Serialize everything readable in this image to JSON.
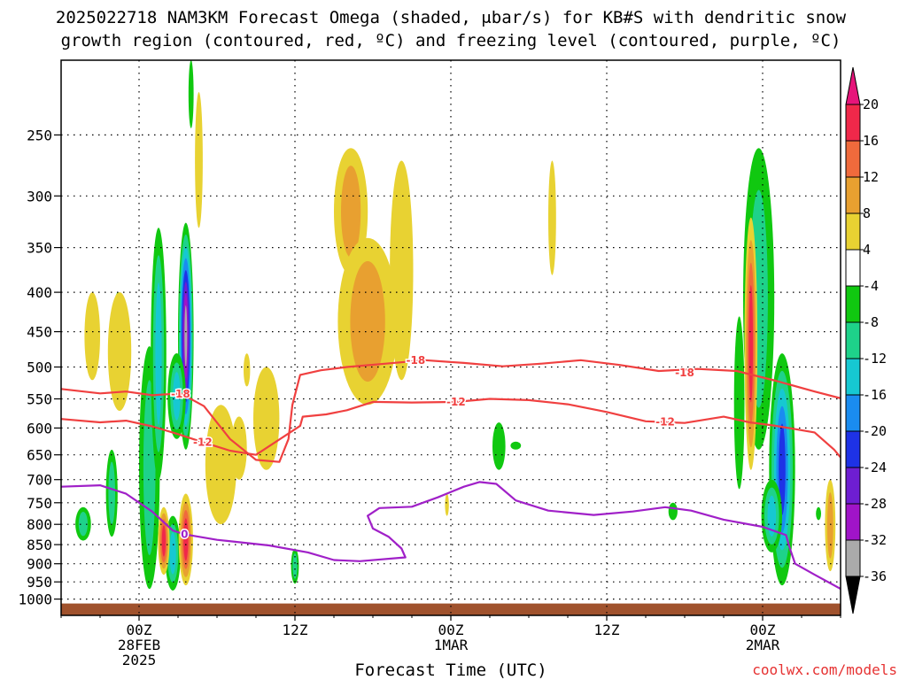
{
  "title_line1": "2025022718 NAM3KM Forecast Omega (shaded, μbar/s) for KB#S with dendritic snow",
  "title_line2": "growth region (contoured, red, ºC) and freezing level (contoured, purple, ºC)",
  "credit": "coolwx.com/models",
  "chart_data": {
    "type": "heatmap",
    "title": "2025022718 NAM3KM Forecast Omega (shaded, μbar/s) for KB#S with dendritic snow growth region (contoured, red, ºC) and freezing level (contoured, purple, ºC)",
    "xlabel": "Forecast Time (UTC)",
    "ylabel": "",
    "x_units": "hours after 2025-02-27 18Z",
    "xlim": [
      0,
      60
    ],
    "y_scale": "log",
    "y_units": "hPa",
    "ylim": [
      1050,
      200
    ],
    "y_ticks": [
      250,
      300,
      350,
      400,
      450,
      500,
      550,
      600,
      650,
      700,
      750,
      800,
      850,
      900,
      950,
      1000
    ],
    "x_ticks": [
      {
        "hour": 6,
        "lines": [
          "00Z",
          "28FEB",
          "2025"
        ]
      },
      {
        "hour": 18,
        "lines": [
          "12Z"
        ]
      },
      {
        "hour": 30,
        "lines": [
          "00Z",
          "1MAR"
        ]
      },
      {
        "hour": 42,
        "lines": [
          "12Z"
        ]
      },
      {
        "hour": 54,
        "lines": [
          "00Z",
          "2MAR"
        ]
      }
    ],
    "grid": true,
    "colorbar": {
      "ticks": [
        20,
        16,
        12,
        8,
        4,
        -4,
        -8,
        -12,
        -16,
        -20,
        -24,
        -28,
        -32,
        -36
      ],
      "bins": [
        {
          "lo": 16,
          "hi": 20,
          "color": "#f0284a"
        },
        {
          "lo": 12,
          "hi": 16,
          "color": "#f06a3c"
        },
        {
          "lo": 8,
          "hi": 12,
          "color": "#e8a030"
        },
        {
          "lo": 4,
          "hi": 8,
          "color": "#e8d232"
        },
        {
          "lo": -4,
          "hi": 4,
          "color": "#ffffff"
        },
        {
          "lo": -8,
          "hi": -4,
          "color": "#10c810"
        },
        {
          "lo": -12,
          "hi": -8,
          "color": "#1ed28a"
        },
        {
          "lo": -16,
          "hi": -12,
          "color": "#16c8d2"
        },
        {
          "lo": -20,
          "hi": -16,
          "color": "#1a8cf0"
        },
        {
          "lo": -24,
          "hi": -20,
          "color": "#1e32e6"
        },
        {
          "lo": -28,
          "hi": -24,
          "color": "#6e1ed2"
        },
        {
          "lo": -32,
          "hi": -28,
          "color": "#a014c8"
        },
        {
          "lo": -36,
          "hi": -32,
          "color": "#aaaaaa"
        }
      ],
      "top_arrow_color": "#e6147a",
      "bottom_arrow_color": "#000000"
    },
    "terrain_color": "#a0522d",
    "omega_regions": [
      {
        "hour": 1.7,
        "p_top": 760,
        "p_bottom": 840,
        "half_width": 0.6,
        "levels": [
          -8,
          -12
        ]
      },
      {
        "hour": 3.9,
        "p_top": 640,
        "p_bottom": 830,
        "half_width": 0.45,
        "levels": [
          -8,
          -12
        ]
      },
      {
        "hour": 6.8,
        "p_top": 470,
        "p_bottom": 970,
        "half_width": 0.8,
        "levels": [
          -8,
          -12
        ]
      },
      {
        "hour": 7.5,
        "p_top": 330,
        "p_bottom": 700,
        "half_width": 0.6,
        "levels": [
          -8,
          -12,
          -16
        ]
      },
      {
        "hour": 9.6,
        "p_top": 325,
        "p_bottom": 640,
        "half_width": 0.6,
        "levels": [
          -8,
          -12,
          -16,
          -20,
          -24,
          -28,
          -32,
          -36
        ]
      },
      {
        "hour": 8.9,
        "p_top": 480,
        "p_bottom": 620,
        "half_width": 0.7,
        "levels": [
          -8,
          -12,
          -16
        ]
      },
      {
        "hour": 8.6,
        "p_top": 780,
        "p_bottom": 975,
        "half_width": 0.6,
        "levels": [
          -8,
          -12,
          -16
        ]
      },
      {
        "hour": 4.4,
        "p_top": 400,
        "p_bottom": 520,
        "half_width": 0.5,
        "levels": [
          -8,
          -12
        ]
      },
      {
        "hour": 10.0,
        "p_top": 200,
        "p_bottom": 245,
        "half_width": 0.2,
        "levels": [
          -8
        ]
      },
      {
        "hour": 18.0,
        "p_top": 860,
        "p_bottom": 955,
        "half_width": 0.3,
        "levels": [
          -8,
          -12
        ]
      },
      {
        "hour": 33.7,
        "p_top": 590,
        "p_bottom": 680,
        "half_width": 0.5,
        "levels": [
          -8
        ]
      },
      {
        "hour": 35.0,
        "p_top": 625,
        "p_bottom": 640,
        "half_width": 0.4,
        "levels": [
          -8
        ]
      },
      {
        "hour": 52.2,
        "p_top": 430,
        "p_bottom": 720,
        "half_width": 0.4,
        "levels": [
          -8
        ]
      },
      {
        "hour": 53.7,
        "p_top": 260,
        "p_bottom": 640,
        "half_width": 1.2,
        "levels": [
          -8,
          -12
        ]
      },
      {
        "hour": 55.5,
        "p_top": 480,
        "p_bottom": 960,
        "half_width": 1.0,
        "levels": [
          -8,
          -12,
          -16,
          -20,
          -24
        ]
      },
      {
        "hour": 54.7,
        "p_top": 700,
        "p_bottom": 870,
        "half_width": 0.8,
        "levels": [
          -8,
          -12,
          -16
        ]
      },
      {
        "hour": 47.1,
        "p_top": 750,
        "p_bottom": 790,
        "half_width": 0.35,
        "levels": [
          -8
        ]
      },
      {
        "hour": 58.3,
        "p_top": 760,
        "p_bottom": 790,
        "half_width": 0.2,
        "levels": [
          -8
        ]
      },
      {
        "hour": 4.5,
        "p_top": 400,
        "p_bottom": 570,
        "half_width": 0.9,
        "levels": [
          4
        ]
      },
      {
        "hour": 2.4,
        "p_top": 400,
        "p_bottom": 520,
        "half_width": 0.6,
        "levels": [
          4
        ]
      },
      {
        "hour": 10.6,
        "p_top": 220,
        "p_bottom": 330,
        "half_width": 0.3,
        "levels": [
          4
        ]
      },
      {
        "hour": 12.3,
        "p_top": 560,
        "p_bottom": 800,
        "half_width": 1.2,
        "levels": [
          4
        ]
      },
      {
        "hour": 13.7,
        "p_top": 580,
        "p_bottom": 700,
        "half_width": 0.6,
        "levels": [
          4
        ]
      },
      {
        "hour": 15.8,
        "p_top": 500,
        "p_bottom": 680,
        "half_width": 1.0,
        "levels": [
          4
        ]
      },
      {
        "hour": 22.3,
        "p_top": 260,
        "p_bottom": 380,
        "half_width": 1.3,
        "levels": [
          4,
          8
        ]
      },
      {
        "hour": 23.6,
        "p_top": 340,
        "p_bottom": 560,
        "half_width": 2.3,
        "levels": [
          4,
          8
        ]
      },
      {
        "hour": 26.2,
        "p_top": 270,
        "p_bottom": 520,
        "half_width": 0.9,
        "levels": [
          4
        ]
      },
      {
        "hour": 37.8,
        "p_top": 270,
        "p_bottom": 380,
        "half_width": 0.3,
        "levels": [
          4
        ]
      },
      {
        "hour": 59.2,
        "p_top": 700,
        "p_bottom": 920,
        "half_width": 0.4,
        "levels": [
          4,
          8
        ]
      },
      {
        "hour": 53.1,
        "p_top": 320,
        "p_bottom": 680,
        "half_width": 0.5,
        "levels": [
          4,
          8,
          12,
          16
        ]
      },
      {
        "hour": 9.6,
        "p_top": 730,
        "p_bottom": 960,
        "half_width": 0.55,
        "levels": [
          4,
          8,
          12,
          16
        ]
      },
      {
        "hour": 7.9,
        "p_top": 760,
        "p_bottom": 930,
        "half_width": 0.45,
        "levels": [
          4,
          8,
          12,
          16
        ]
      },
      {
        "hour": 14.3,
        "p_top": 480,
        "p_bottom": 530,
        "half_width": 0.25,
        "levels": [
          4
        ]
      },
      {
        "hour": 29.7,
        "p_top": 730,
        "p_bottom": 780,
        "half_width": 0.15,
        "levels": [
          4
        ]
      }
    ],
    "contours": [
      {
        "level": "-18",
        "color": "#f04040",
        "label_points": [
          [
            9.2,
            542
          ],
          [
            27.3,
            490
          ],
          [
            48.0,
            509
          ]
        ],
        "points": [
          [
            0,
            534
          ],
          [
            3,
            541
          ],
          [
            5,
            538
          ],
          [
            7,
            544
          ],
          [
            9.2,
            541
          ],
          [
            11,
            562
          ],
          [
            13,
            620
          ],
          [
            15,
            660
          ],
          [
            16.8,
            664
          ],
          [
            17.5,
            620
          ],
          [
            17.8,
            560
          ],
          [
            18.4,
            512
          ],
          [
            20,
            505
          ],
          [
            22,
            500
          ],
          [
            25,
            495
          ],
          [
            28,
            490
          ],
          [
            31,
            494
          ],
          [
            34,
            499
          ],
          [
            37,
            495
          ],
          [
            40,
            490
          ],
          [
            43,
            497
          ],
          [
            46,
            506
          ],
          [
            49,
            503
          ],
          [
            52,
            506
          ],
          [
            55,
            521
          ],
          [
            58,
            538
          ],
          [
            60,
            549
          ]
        ]
      },
      {
        "level": "-12",
        "color": "#f04040",
        "label_points": [
          [
            10.9,
            626
          ],
          [
            30.4,
            555
          ],
          [
            46.5,
            589
          ]
        ],
        "points": [
          [
            0,
            584
          ],
          [
            3,
            590
          ],
          [
            5,
            587
          ],
          [
            7,
            597
          ],
          [
            9,
            611
          ],
          [
            10.9,
            626
          ],
          [
            13,
            642
          ],
          [
            15,
            650
          ],
          [
            18.4,
            596
          ],
          [
            18.6,
            580
          ],
          [
            20.4,
            576
          ],
          [
            22,
            569
          ],
          [
            24,
            555
          ],
          [
            27,
            556
          ],
          [
            30.4,
            555
          ],
          [
            33,
            550
          ],
          [
            36,
            552
          ],
          [
            39,
            559
          ],
          [
            42,
            572
          ],
          [
            45,
            588
          ],
          [
            48,
            591
          ],
          [
            51,
            580
          ],
          [
            53,
            590
          ],
          [
            55,
            596
          ],
          [
            58,
            608
          ],
          [
            59.5,
            640
          ],
          [
            60,
            655
          ]
        ]
      },
      {
        "level": "0",
        "color": "#a020c8",
        "label_points": [
          [
            9.5,
            824
          ]
        ],
        "points": [
          [
            0,
            715
          ],
          [
            3,
            712
          ],
          [
            5,
            730
          ],
          [
            7,
            770
          ],
          [
            8.6,
            815
          ],
          [
            9.5,
            824
          ],
          [
            12,
            838
          ],
          [
            16,
            852
          ],
          [
            19,
            870
          ],
          [
            21,
            890
          ],
          [
            23,
            893
          ],
          [
            26.5,
            883
          ],
          [
            26.2,
            860
          ],
          [
            25.2,
            830
          ],
          [
            24,
            810
          ],
          [
            23.6,
            780
          ],
          [
            24.5,
            762
          ],
          [
            27,
            759
          ],
          [
            29,
            738
          ],
          [
            31,
            715
          ],
          [
            32.2,
            705
          ],
          [
            33.5,
            709
          ],
          [
            35,
            745
          ],
          [
            37.5,
            768
          ],
          [
            41,
            778
          ],
          [
            44,
            770
          ],
          [
            46.5,
            760
          ],
          [
            48.5,
            768
          ],
          [
            51,
            789
          ],
          [
            54,
            806
          ],
          [
            55.8,
            826
          ],
          [
            56.1,
            860
          ],
          [
            56.5,
            900
          ],
          [
            58,
            930
          ],
          [
            60,
            970
          ]
        ]
      }
    ]
  }
}
